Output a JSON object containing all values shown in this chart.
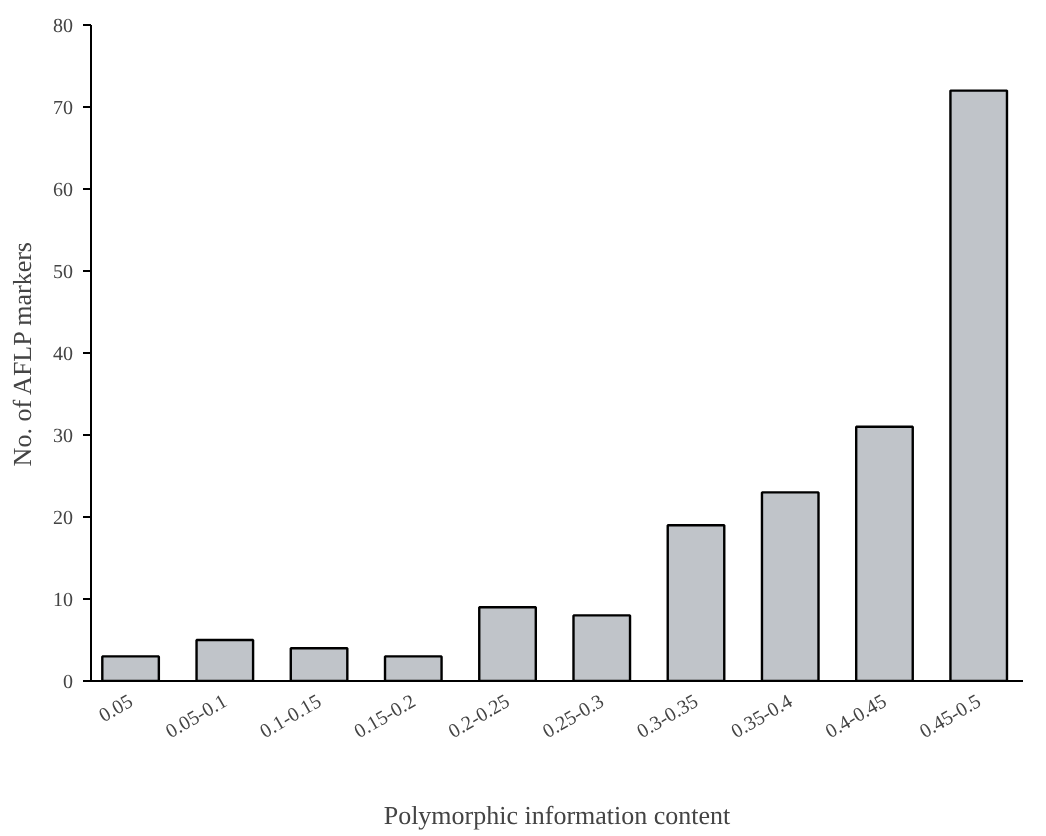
{
  "chart_data": {
    "type": "bar",
    "xlabel": "Polymorphic information content",
    "ylabel": "No. of AFLP markers",
    "categories": [
      "0.05",
      "0.05-0.1",
      "0.1-0.15",
      "0.15-0.2",
      "0.2-0.25",
      "0.25-0.3",
      "0.3-0.35",
      "0.35-0.4",
      "0.4-0.45",
      "0.45-0.5"
    ],
    "values": [
      3,
      5,
      4,
      3,
      9,
      8,
      19,
      23,
      31,
      72
    ],
    "color": "#c0c4c9",
    "ylim": [
      0,
      80
    ],
    "yticks": [
      0,
      10,
      20,
      30,
      40,
      50,
      60,
      70,
      80
    ],
    "grid": false
  }
}
